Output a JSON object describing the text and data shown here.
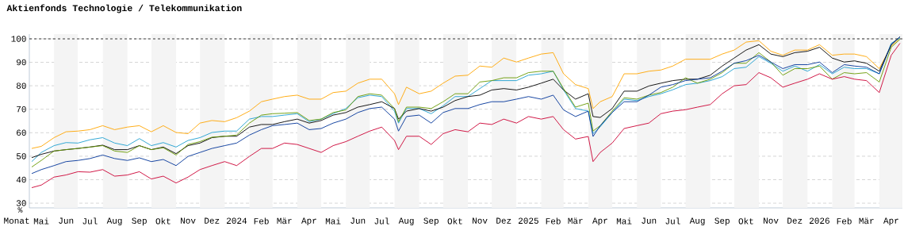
{
  "chart_data": {
    "type": "line",
    "title": "Aktienfonds Technologie / Telekommunikation",
    "xlabel": "Monat",
    "ylabel": "%",
    "x": [
      "2023-05-04",
      "2023-05-16",
      "2023-06-01",
      "2023-06-16",
      "2023-07-01",
      "2023-07-16",
      "2023-08-01",
      "2023-08-16",
      "2023-09-01",
      "2023-09-16",
      "2023-10-01",
      "2023-10-16",
      "2023-11-01",
      "2023-11-16",
      "2023-12-01",
      "2023-12-16",
      "2024-01-01",
      "2024-01-16",
      "2024-02-01",
      "2024-02-16",
      "2024-03-01",
      "2024-03-16",
      "2024-04-01",
      "2024-04-16",
      "2024-05-01",
      "2024-05-16",
      "2024-06-01",
      "2024-06-16",
      "2024-07-01",
      "2024-07-16",
      "2024-08-01",
      "2024-08-06",
      "2024-08-16",
      "2024-09-01",
      "2024-09-16",
      "2024-10-01",
      "2024-10-16",
      "2024-11-01",
      "2024-11-16",
      "2024-12-01",
      "2024-12-16",
      "2025-01-01",
      "2025-01-16",
      "2025-02-01",
      "2025-02-16",
      "2025-03-01",
      "2025-03-16",
      "2025-04-01",
      "2025-04-07",
      "2025-04-16",
      "2025-05-01",
      "2025-05-16",
      "2025-06-01",
      "2025-06-16",
      "2025-07-01",
      "2025-07-16",
      "2025-08-01",
      "2025-08-16",
      "2025-09-01",
      "2025-09-16",
      "2025-10-01",
      "2025-10-16",
      "2025-11-01",
      "2025-11-16",
      "2025-12-01",
      "2025-12-16",
      "2026-01-01",
      "2026-01-16",
      "2026-02-01",
      "2026-02-16",
      "2026-03-01",
      "2026-03-16",
      "2026-04-01",
      "2026-04-16",
      "2026-04-27"
    ],
    "series": [
      {
        "color": "#ffa500",
        "values": [
          53.3,
          54.2,
          57.9,
          60.4,
          60.7,
          61.3,
          63.0,
          61.3,
          62.4,
          63.0,
          60.4,
          63.0,
          60.1,
          59.6,
          64.1,
          65.2,
          64.7,
          66.4,
          69.2,
          73.2,
          74.3,
          75.4,
          76.0,
          74.3,
          74.3,
          77.1,
          77.7,
          81.1,
          82.8,
          82.8,
          76.6,
          72.0,
          79.4,
          76.6,
          77.7,
          81.1,
          84.1,
          84.5,
          88.4,
          87.9,
          91.8,
          90.1,
          91.8,
          93.5,
          94.1,
          85.1,
          80.5,
          78.8,
          70.3,
          73.2,
          75.4,
          85.1,
          85.1,
          86.2,
          86.7,
          88.4,
          91.3,
          91.3,
          91.3,
          93.5,
          95.2,
          98.6,
          99.2,
          94.7,
          93.0,
          95.2,
          95.2,
          97.5,
          93.0,
          93.5,
          93.5,
          92.4,
          87.3,
          96.9,
          100.3
        ]
      },
      {
        "color": "#1e9fd0",
        "values": [
          47.7,
          51.6,
          54.5,
          55.8,
          55.6,
          57.0,
          57.9,
          55.6,
          54.5,
          57.5,
          54.5,
          55.8,
          53.9,
          56.7,
          57.9,
          60.1,
          60.7,
          60.7,
          65.8,
          66.9,
          66.9,
          67.5,
          68.1,
          64.7,
          65.8,
          68.1,
          70.3,
          74.9,
          76.0,
          75.4,
          69.2,
          64.1,
          70.3,
          70.3,
          68.1,
          71.5,
          75.4,
          75.4,
          78.8,
          82.2,
          82.2,
          82.2,
          84.5,
          85.1,
          86.2,
          78.2,
          70.3,
          69.2,
          59.6,
          62.5,
          68.6,
          74.3,
          73.7,
          75.4,
          76.6,
          78.3,
          80.5,
          81.1,
          82.2,
          83.9,
          87.3,
          87.9,
          92.4,
          89.6,
          86.2,
          88.4,
          86.2,
          89.0,
          85.1,
          87.9,
          87.3,
          87.3,
          85.1,
          98.1,
          100.3
        ]
      },
      {
        "color": "#000000",
        "values": [
          49.4,
          50.8,
          52.2,
          52.8,
          53.3,
          53.9,
          54.7,
          52.8,
          52.8,
          54.5,
          52.8,
          53.9,
          51.1,
          54.5,
          55.6,
          57.9,
          58.5,
          58.5,
          62.4,
          63.5,
          63.5,
          64.7,
          65.8,
          64.1,
          65.2,
          67.5,
          68.6,
          70.9,
          72.0,
          73.2,
          70.3,
          65.8,
          69.2,
          70.3,
          69.2,
          70.9,
          73.7,
          75.4,
          76.0,
          78.2,
          78.8,
          78.2,
          79.4,
          81.1,
          82.8,
          78.2,
          74.3,
          76.6,
          66.9,
          66.5,
          70.3,
          77.7,
          77.7,
          79.9,
          81.1,
          82.2,
          82.8,
          82.8,
          84.5,
          88.4,
          91.8,
          95.2,
          97.5,
          93.5,
          92.4,
          94.1,
          94.7,
          96.4,
          91.8,
          90.1,
          90.6,
          89.6,
          86.2,
          97.5,
          100.9
        ]
      },
      {
        "color": "#669900",
        "values": [
          45.4,
          48.2,
          52.2,
          52.8,
          53.3,
          53.9,
          54.5,
          52.2,
          51.6,
          54.5,
          52.8,
          53.6,
          50.5,
          55.0,
          56.2,
          58.1,
          58.5,
          59.0,
          64.1,
          67.5,
          68.1,
          68.3,
          68.6,
          65.2,
          65.8,
          68.6,
          69.7,
          75.4,
          76.6,
          76.0,
          70.3,
          64.7,
          70.9,
          70.9,
          70.3,
          73.2,
          76.6,
          76.6,
          81.6,
          82.2,
          83.4,
          83.4,
          85.6,
          86.2,
          86.2,
          78.8,
          70.9,
          72.6,
          60.7,
          63.0,
          69.2,
          74.9,
          74.3,
          76.0,
          77.1,
          79.4,
          83.4,
          81.1,
          82.8,
          85.6,
          89.6,
          89.6,
          94.1,
          90.1,
          84.5,
          87.3,
          87.3,
          88.4,
          82.8,
          85.6,
          85.1,
          85.6,
          81.6,
          96.4,
          99.8
        ]
      },
      {
        "color": "#003399",
        "values": [
          42.6,
          44.3,
          46.0,
          47.7,
          48.2,
          49.0,
          50.5,
          49.0,
          48.2,
          49.3,
          47.7,
          48.6,
          46.0,
          49.9,
          51.6,
          53.3,
          54.5,
          55.6,
          59.0,
          61.3,
          63.0,
          63.5,
          64.1,
          61.3,
          61.8,
          64.1,
          65.8,
          68.6,
          70.3,
          70.9,
          65.8,
          60.7,
          66.9,
          67.5,
          64.1,
          68.6,
          70.3,
          70.3,
          72.0,
          73.2,
          73.2,
          74.3,
          75.4,
          74.3,
          76.0,
          69.7,
          66.9,
          69.2,
          58.4,
          63.0,
          68.6,
          73.2,
          73.2,
          76.0,
          79.4,
          80.5,
          82.2,
          82.8,
          83.4,
          86.2,
          89.6,
          90.7,
          93.0,
          90.1,
          87.3,
          89.0,
          89.0,
          90.1,
          85.6,
          89.0,
          88.4,
          87.9,
          85.1,
          97.5,
          100.9
        ]
      },
      {
        "color": "#cc0033",
        "values": [
          36.6,
          37.7,
          41.1,
          42.0,
          43.4,
          43.2,
          44.3,
          41.5,
          42.0,
          43.4,
          40.3,
          41.5,
          38.6,
          41.1,
          44.3,
          46.0,
          47.7,
          46.0,
          49.9,
          53.3,
          53.3,
          55.6,
          55.0,
          53.3,
          51.6,
          54.5,
          56.2,
          58.5,
          60.7,
          62.4,
          56.7,
          52.8,
          58.5,
          58.5,
          55.0,
          59.6,
          61.3,
          60.4,
          64.1,
          63.5,
          65.8,
          64.1,
          66.9,
          65.8,
          66.9,
          61.3,
          57.3,
          58.4,
          47.7,
          51.6,
          55.6,
          61.8,
          63.0,
          64.1,
          68.1,
          69.2,
          69.8,
          70.9,
          72.0,
          76.6,
          80.0,
          80.5,
          85.6,
          83.4,
          79.4,
          81.1,
          82.8,
          85.1,
          82.8,
          83.9,
          82.8,
          82.2,
          77.1,
          93.0,
          98.1
        ]
      }
    ],
    "xlim": [
      "2023-05-01",
      "2026-04-30"
    ],
    "xticks": [
      {
        "value": "2023-05-16",
        "label": "Mai"
      },
      {
        "value": "2023-06-16",
        "label": "Jun"
      },
      {
        "value": "2023-07-16",
        "label": "Jul"
      },
      {
        "value": "2023-08-16",
        "label": "Aug"
      },
      {
        "value": "2023-09-16",
        "label": "Sep"
      },
      {
        "value": "2023-10-16",
        "label": "Okt"
      },
      {
        "value": "2023-11-16",
        "label": "Nov"
      },
      {
        "value": "2023-12-16",
        "label": "Dez"
      },
      {
        "value": "2024-01-16",
        "label": "2024"
      },
      {
        "value": "2024-02-16",
        "label": "Feb"
      },
      {
        "value": "2024-03-16",
        "label": "Mär"
      },
      {
        "value": "2024-04-16",
        "label": "Apr"
      },
      {
        "value": "2024-05-16",
        "label": "Mai"
      },
      {
        "value": "2024-06-16",
        "label": "Jun"
      },
      {
        "value": "2024-07-16",
        "label": "Jul"
      },
      {
        "value": "2024-08-16",
        "label": "Aug"
      },
      {
        "value": "2024-09-16",
        "label": "Sep"
      },
      {
        "value": "2024-10-16",
        "label": "Okt"
      },
      {
        "value": "2024-11-16",
        "label": "Nov"
      },
      {
        "value": "2024-12-16",
        "label": "Dez"
      },
      {
        "value": "2025-01-16",
        "label": "2025"
      },
      {
        "value": "2025-02-16",
        "label": "Feb"
      },
      {
        "value": "2025-03-16",
        "label": "Mär"
      },
      {
        "value": "2025-04-16",
        "label": "Apr"
      },
      {
        "value": "2025-05-16",
        "label": "Mai"
      },
      {
        "value": "2025-06-16",
        "label": "Jun"
      },
      {
        "value": "2025-07-16",
        "label": "Jul"
      },
      {
        "value": "2025-08-16",
        "label": "Aug"
      },
      {
        "value": "2025-09-16",
        "label": "Sep"
      },
      {
        "value": "2025-10-16",
        "label": "Okt"
      },
      {
        "value": "2025-11-16",
        "label": "Nov"
      },
      {
        "value": "2025-12-16",
        "label": "Dez"
      },
      {
        "value": "2026-01-16",
        "label": "2026"
      },
      {
        "value": "2026-02-16",
        "label": "Feb"
      },
      {
        "value": "2026-03-16",
        "label": "Mär"
      },
      {
        "value": "2026-04-16",
        "label": "Apr"
      }
    ],
    "ylim": [
      28,
      102
    ],
    "yticks": [
      30,
      40,
      50,
      60,
      70,
      80,
      90,
      100
    ],
    "grid": "y",
    "marker": "none",
    "line_style": "solid",
    "ref_lines": [
      {
        "axis": "y",
        "value": 100,
        "color": "#000000",
        "line_style": "dashed"
      }
    ],
    "bands": [
      {
        "axis": "x",
        "from": "2023-06-01",
        "to": "2023-07-01",
        "color": "#f4f4f4"
      },
      {
        "axis": "x",
        "from": "2023-08-01",
        "to": "2023-09-01",
        "color": "#f4f4f4"
      },
      {
        "axis": "x",
        "from": "2023-10-01",
        "to": "2023-11-01",
        "color": "#f4f4f4"
      },
      {
        "axis": "x",
        "from": "2023-12-01",
        "to": "2024-01-01",
        "color": "#f4f4f4"
      },
      {
        "axis": "x",
        "from": "2024-02-01",
        "to": "2024-03-01",
        "color": "#f4f4f4"
      },
      {
        "axis": "x",
        "from": "2024-04-01",
        "to": "2024-05-01",
        "color": "#f4f4f4"
      },
      {
        "axis": "x",
        "from": "2024-06-01",
        "to": "2024-07-01",
        "color": "#f4f4f4"
      },
      {
        "axis": "x",
        "from": "2024-08-01",
        "to": "2024-09-01",
        "color": "#f4f4f4"
      },
      {
        "axis": "x",
        "from": "2024-10-01",
        "to": "2024-11-01",
        "color": "#f4f4f4"
      },
      {
        "axis": "x",
        "from": "2024-12-01",
        "to": "2025-01-01",
        "color": "#f4f4f4"
      },
      {
        "axis": "x",
        "from": "2025-02-01",
        "to": "2025-03-01",
        "color": "#f4f4f4"
      },
      {
        "axis": "x",
        "from": "2025-04-01",
        "to": "2025-05-01",
        "color": "#f4f4f4"
      },
      {
        "axis": "x",
        "from": "2025-06-01",
        "to": "2025-07-01",
        "color": "#f4f4f4"
      },
      {
        "axis": "x",
        "from": "2025-08-01",
        "to": "2025-09-01",
        "color": "#f4f4f4"
      },
      {
        "axis": "x",
        "from": "2025-10-01",
        "to": "2025-11-01",
        "color": "#f4f4f4"
      },
      {
        "axis": "x",
        "from": "2025-12-01",
        "to": "2026-01-01",
        "color": "#f4f4f4"
      },
      {
        "axis": "x",
        "from": "2026-02-01",
        "to": "2026-03-01",
        "color": "#f4f4f4"
      },
      {
        "axis": "x",
        "from": "2026-04-01",
        "to": "2026-05-01",
        "color": "#f4f4f4"
      }
    ]
  }
}
